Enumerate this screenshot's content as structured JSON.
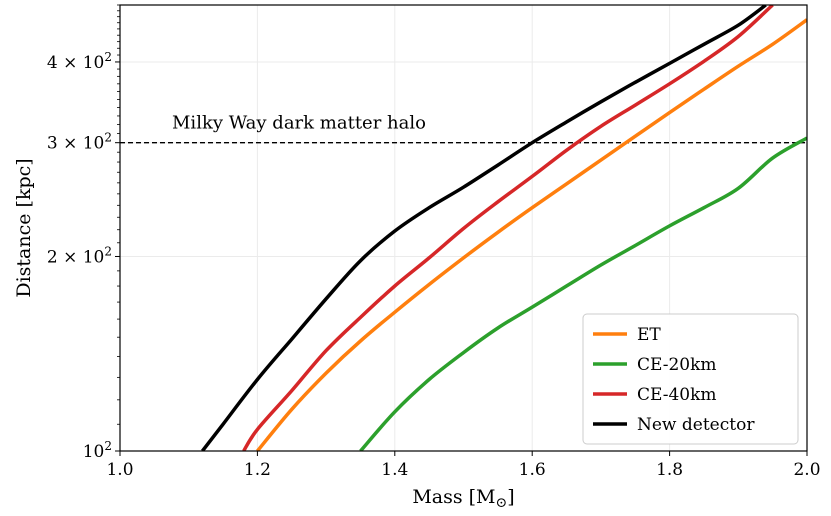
{
  "chart_data": {
    "type": "line",
    "xlabel": "Mass [M",
    "xlabel_sub": "⊙",
    "xlabel_end": "]",
    "ylabel": "Distance [kpc]",
    "xlim": [
      1.0,
      2.0
    ],
    "ylim": [
      100,
      490
    ],
    "yscale": "log",
    "x_ticks": [
      1.0,
      1.2,
      1.4,
      1.6,
      1.8,
      2.0
    ],
    "x_tick_labels": [
      "1.0",
      "1.2",
      "1.4",
      "1.6",
      "1.8",
      "2.0"
    ],
    "y_ticks": [
      100,
      200,
      300,
      400
    ],
    "y_tick_labels": [
      {
        "base": "10",
        "exp": "2"
      },
      {
        "base": "2 × 10",
        "exp": "2"
      },
      {
        "base": "3 × 10",
        "exp": "2"
      },
      {
        "base": "4 × 10",
        "exp": "2"
      }
    ],
    "grid": true,
    "legend_position": "lower-right",
    "hline": {
      "y": 300,
      "label": "Milky Way dark matter halo",
      "color": "#000000"
    },
    "series": [
      {
        "name": "ET",
        "color": "#ff7f0e",
        "x": [
          1.2,
          1.25,
          1.3,
          1.35,
          1.4,
          1.45,
          1.5,
          1.55,
          1.6,
          1.65,
          1.7,
          1.75,
          1.8,
          1.85,
          1.9,
          1.95,
          2.0
        ],
        "y": [
          100,
          116,
          132,
          148,
          164,
          181,
          199,
          218,
          238,
          259,
          282,
          307,
          334,
          363,
          394,
          426,
          465
        ]
      },
      {
        "name": "CE-20km",
        "color": "#2ca02c",
        "x": [
          1.35,
          1.4,
          1.45,
          1.5,
          1.55,
          1.6,
          1.65,
          1.7,
          1.75,
          1.8,
          1.85,
          1.9,
          1.95,
          2.0
        ],
        "y": [
          100,
          115,
          129,
          142,
          155,
          167,
          180,
          194,
          208,
          223,
          238,
          255,
          284,
          305
        ]
      },
      {
        "name": "CE-40km",
        "color": "#d62728",
        "x": [
          1.18,
          1.2,
          1.25,
          1.3,
          1.35,
          1.4,
          1.45,
          1.5,
          1.55,
          1.6,
          1.65,
          1.7,
          1.75,
          1.8,
          1.85,
          1.9,
          1.95
        ],
        "y": [
          100,
          108,
          124,
          143,
          161,
          180,
          199,
          221,
          243,
          266,
          292,
          318,
          343,
          370,
          401,
          438,
          490
        ]
      },
      {
        "name": "New detector",
        "color": "#000000",
        "x": [
          1.12,
          1.15,
          1.2,
          1.25,
          1.3,
          1.35,
          1.4,
          1.45,
          1.5,
          1.55,
          1.6,
          1.65,
          1.7,
          1.75,
          1.8,
          1.85,
          1.9,
          1.94
        ],
        "y": [
          100,
          110,
          129,
          149,
          172,
          197,
          219,
          238,
          256,
          277,
          300,
          323,
          347,
          372,
          398,
          426,
          456,
          490
        ]
      }
    ]
  }
}
